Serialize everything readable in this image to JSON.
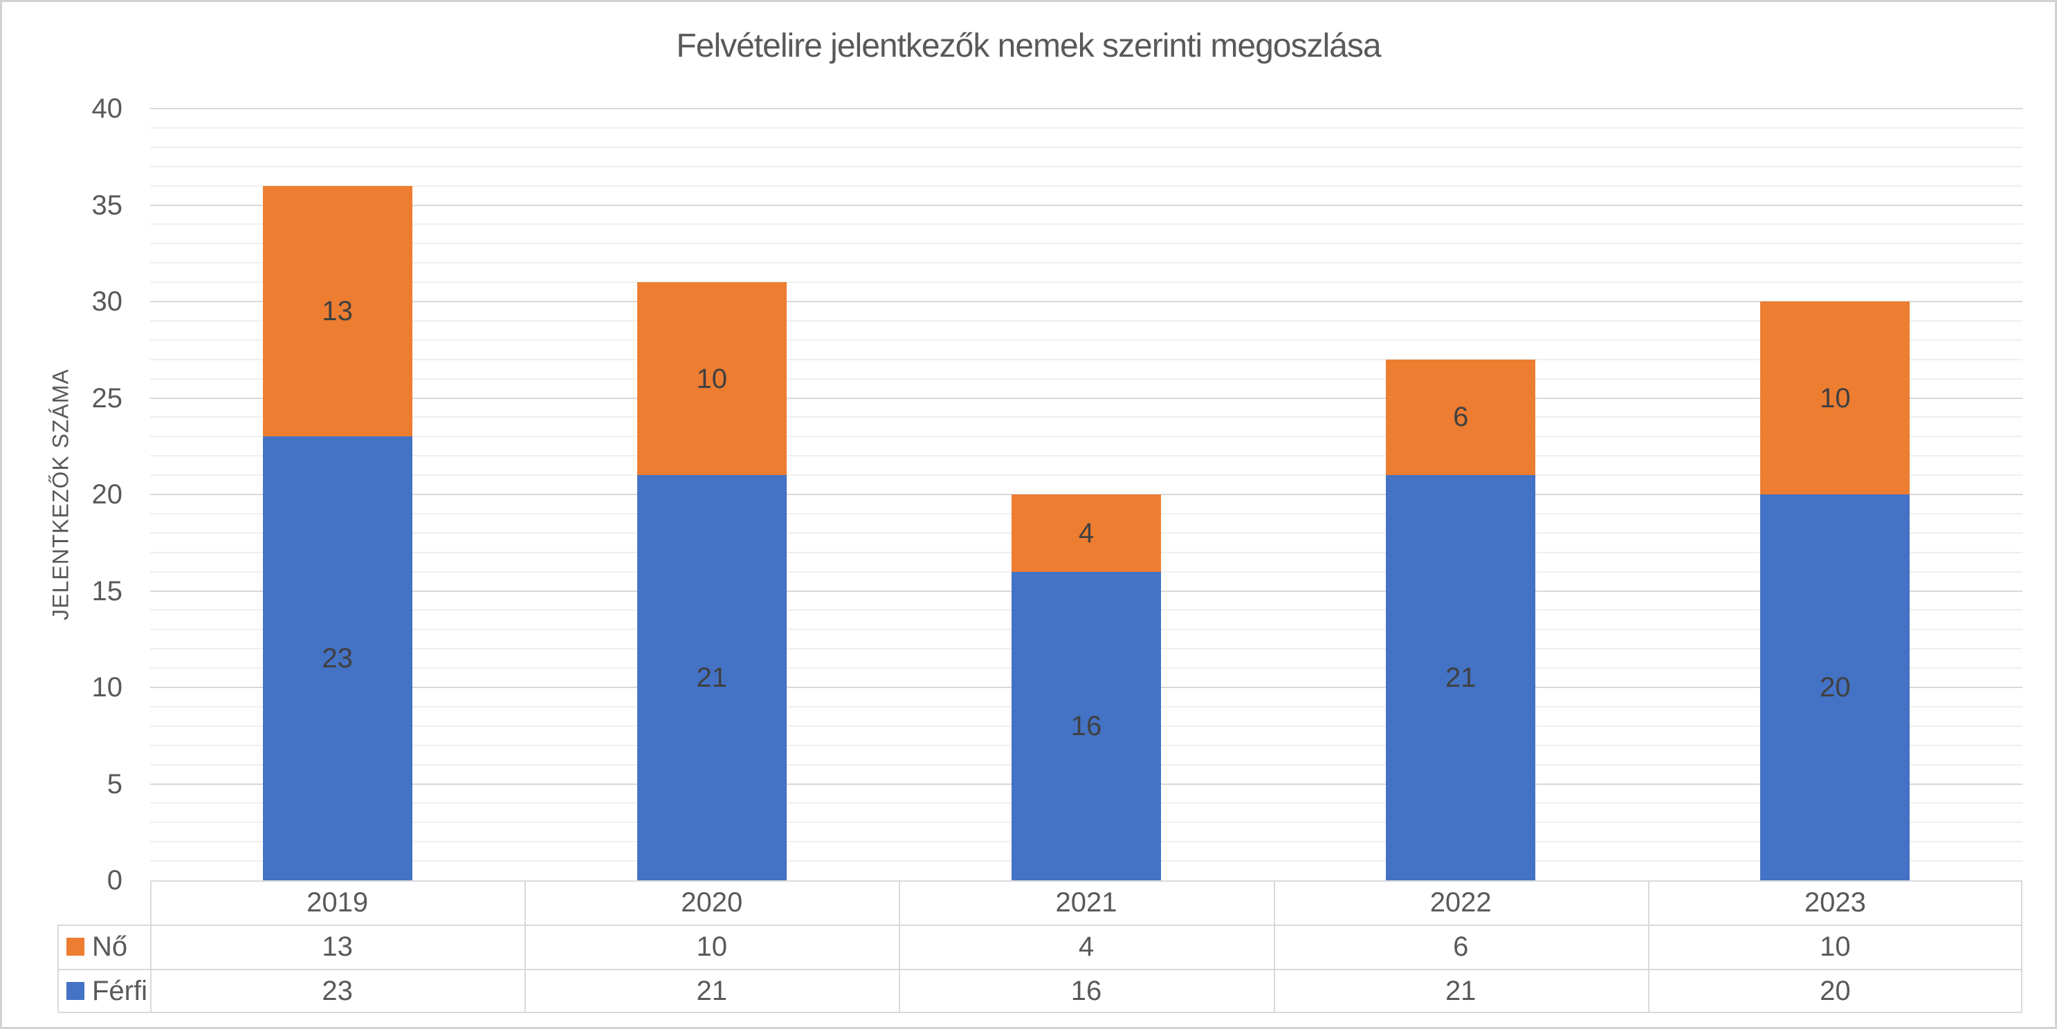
{
  "chart_data": {
    "type": "bar",
    "stacked": true,
    "title": "Felvételire jelentkezők nemek szerinti megoszlása",
    "xlabel": "",
    "ylabel": "JELENTKEZŐK SZÁMA",
    "categories": [
      "2019",
      "2020",
      "2021",
      "2022",
      "2023"
    ],
    "series": [
      {
        "name": "Férfi",
        "color": "#4472C4",
        "values": [
          23,
          21,
          16,
          21,
          20
        ]
      },
      {
        "name": "Nő",
        "color": "#ED7D31",
        "values": [
          13,
          10,
          4,
          6,
          10
        ]
      }
    ],
    "totals": [
      36,
      31,
      20,
      27,
      30
    ],
    "ylim": [
      0,
      40
    ],
    "y_major_unit": 5,
    "y_minor_unit": 1,
    "ytick_labels": [
      "0",
      "5",
      "10",
      "15",
      "20",
      "25",
      "30",
      "35",
      "40"
    ],
    "gridlines": {
      "major": true,
      "minor": true
    },
    "legend_position": "data-table",
    "data_table": {
      "row_order": [
        "Nő",
        "Férfi"
      ],
      "show_legend_keys": true
    },
    "colors": {
      "title_text": "#595959",
      "axis_text": "#595959",
      "data_label_text": "#404040",
      "gridline_major": "#D8D8D8",
      "gridline_minor": "#EFEFEF",
      "table_border": "#D9D9D9",
      "frame_border": "#D2D2D2",
      "background": "#FFFFFF"
    }
  }
}
